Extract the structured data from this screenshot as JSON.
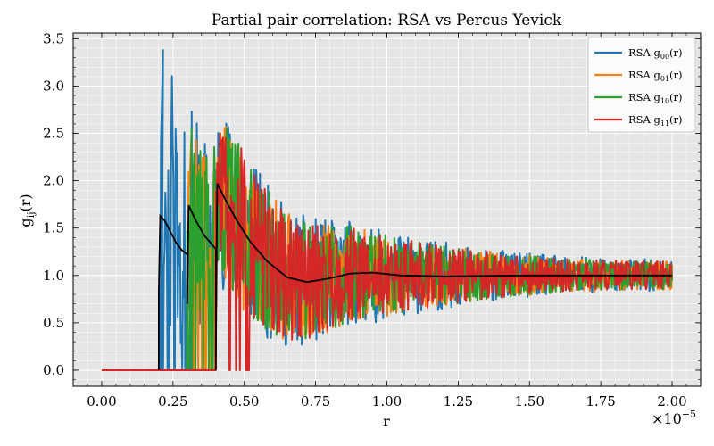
{
  "chart_data": {
    "type": "line",
    "title": "Partial pair correlation: RSA vs Percus Yevick",
    "xlabel": "r",
    "ylabel": "g",
    "ylabel_sub": "ij",
    "ylabel_tail": "(r)",
    "x_offset_text": "×10",
    "x_offset_exp": "−5",
    "xlim": [
      -0.1,
      2.1
    ],
    "ylim": [
      -0.17,
      3.56
    ],
    "x_ticks": [
      0.0,
      0.25,
      0.5,
      0.75,
      1.0,
      1.25,
      1.5,
      1.75,
      2.0
    ],
    "x_tick_labels": [
      "0.00",
      "0.25",
      "0.50",
      "0.75",
      "1.00",
      "1.25",
      "1.50",
      "1.75",
      "2.00"
    ],
    "y_ticks": [
      0.0,
      0.5,
      1.0,
      1.5,
      2.0,
      2.5,
      3.0,
      3.5
    ],
    "y_tick_labels": [
      "0.0",
      "0.5",
      "1.0",
      "1.5",
      "2.0",
      "2.5",
      "3.0",
      "3.5"
    ],
    "grid": true,
    "legend_position": "top-right",
    "colors": {
      "background": "#e5e5e5",
      "grid": "#ffffff",
      "g00": "#1f77b4",
      "g01": "#ff7f0e",
      "g10": "#2ca02c",
      "g11": "#d62728",
      "py": "#000000"
    },
    "series": [
      {
        "name_prefix": "RSA g",
        "name_sub": "00",
        "name_suffix": "(r)",
        "color": "#1f77b4",
        "onset": 0.2,
        "spike_max": 3.38,
        "noise_start": 1.1,
        "noise_end": 0.17
      },
      {
        "name_prefix": "RSA g",
        "name_sub": "01",
        "name_suffix": "(r)",
        "color": "#ff7f0e",
        "onset": 0.3,
        "spike_max": 2.5,
        "noise_start": 0.9,
        "noise_end": 0.15
      },
      {
        "name_prefix": "RSA g",
        "name_sub": "10",
        "name_suffix": "(r)",
        "color": "#2ca02c",
        "onset": 0.3,
        "spike_max": 2.55,
        "noise_start": 0.9,
        "noise_end": 0.15
      },
      {
        "name_prefix": "RSA g",
        "name_sub": "11",
        "name_suffix": "(r)",
        "color": "#d62728",
        "onset": 0.4,
        "spike_max": 2.5,
        "noise_start": 0.75,
        "noise_end": 0.15
      }
    ],
    "percus_yevick": {
      "color": "#000000",
      "points": [
        [
          0.2,
          0.0
        ],
        [
          0.2,
          0.83
        ],
        [
          0.205,
          1.63
        ],
        [
          0.22,
          1.58
        ],
        [
          0.24,
          1.47
        ],
        [
          0.26,
          1.35
        ],
        [
          0.28,
          1.27
        ],
        [
          0.3,
          1.22
        ],
        [
          0.3,
          0.7
        ],
        [
          0.305,
          1.74
        ],
        [
          0.33,
          1.58
        ],
        [
          0.36,
          1.42
        ],
        [
          0.4,
          1.28
        ],
        [
          0.4,
          0.0
        ],
        [
          0.405,
          1.97
        ],
        [
          0.43,
          1.82
        ],
        [
          0.47,
          1.6
        ],
        [
          0.52,
          1.36
        ],
        [
          0.58,
          1.15
        ],
        [
          0.65,
          0.98
        ],
        [
          0.72,
          0.93
        ],
        [
          0.8,
          0.97
        ],
        [
          0.87,
          1.02
        ],
        [
          0.95,
          1.03
        ],
        [
          1.05,
          1.0
        ],
        [
          1.2,
          0.99
        ],
        [
          1.5,
          1.0
        ],
        [
          2.0,
          1.0
        ]
      ]
    }
  }
}
